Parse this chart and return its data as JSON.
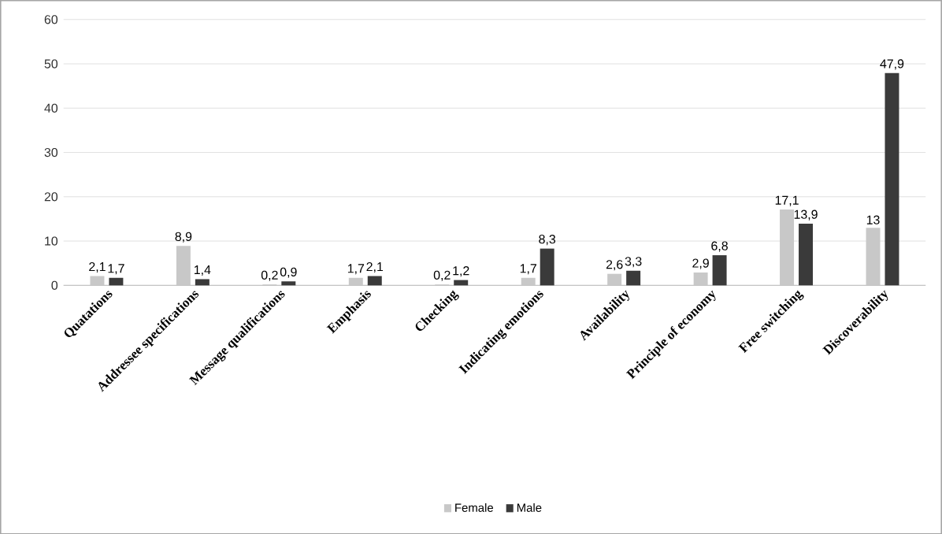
{
  "chart_data": {
    "type": "bar",
    "categories": [
      "Quatations",
      "Addressee specifications",
      "Message qualifications",
      "Emphasis",
      "Checking",
      "Indicating emotions",
      "Availability",
      "Principle of economy",
      "Free switching",
      "Discoverability"
    ],
    "series": [
      {
        "name": "Female",
        "color": "#c8c8c8",
        "values": [
          2.1,
          8.9,
          0.2,
          1.7,
          0.2,
          1.7,
          2.6,
          2.9,
          17.1,
          13
        ],
        "value_labels": [
          "2,1",
          "8,9",
          "0,2",
          "1,7",
          "0,2",
          "1,7",
          "2,6",
          "2,9",
          "17,1",
          "13"
        ]
      },
      {
        "name": "Male",
        "color": "#3a3a3a",
        "values": [
          1.7,
          1.4,
          0.9,
          2.1,
          1.2,
          8.3,
          3.3,
          6.8,
          13.9,
          47.9
        ],
        "value_labels": [
          "1,7",
          "1,4",
          "0,9",
          "2,1",
          "1,2",
          "8,3",
          "3,3",
          "6,8",
          "13,9",
          "47,9"
        ]
      }
    ],
    "ylim": [
      0,
      60
    ],
    "yticks": [
      0,
      10,
      20,
      30,
      40,
      50,
      60
    ],
    "grid": "y",
    "legend": "bottom"
  }
}
